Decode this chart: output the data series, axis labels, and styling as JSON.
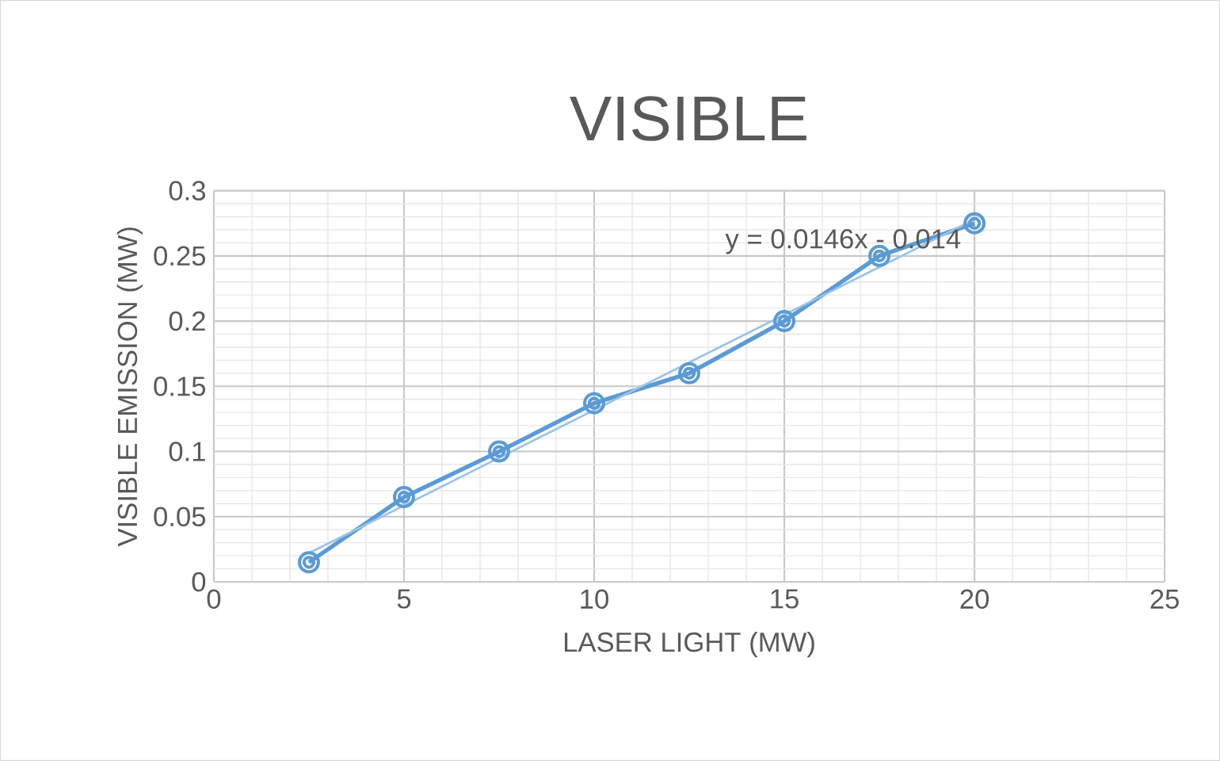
{
  "chart_data": {
    "type": "line",
    "title": "VISIBLE",
    "xlabel": "LASER LIGHT (MW)",
    "ylabel": "VISIBLE EMISSION (MW)",
    "x": [
      2.5,
      5,
      7.5,
      10,
      12.5,
      15,
      17.5,
      20
    ],
    "series": [
      {
        "color": "#5b9bd5",
        "values": [
          0.015,
          0.065,
          0.1,
          0.137,
          0.16,
          0.2,
          0.25,
          0.275
        ],
        "marker": "circle"
      },
      {
        "type": "line",
        "color": "#9dc3e6",
        "x": [
          2.5,
          20
        ],
        "values": [
          0.022,
          0.278
        ],
        "marker": "none"
      }
    ],
    "annotations": [
      "y = 0.0146x - 0.014"
    ],
    "xlim": [
      0,
      25
    ],
    "xticks": [
      0,
      5,
      10,
      15,
      20,
      25
    ],
    "ylim": [
      0,
      0.3
    ],
    "yticks": [
      0,
      0.05,
      0.1,
      0.15,
      0.2,
      0.25,
      0.3
    ],
    "grid": true
  }
}
